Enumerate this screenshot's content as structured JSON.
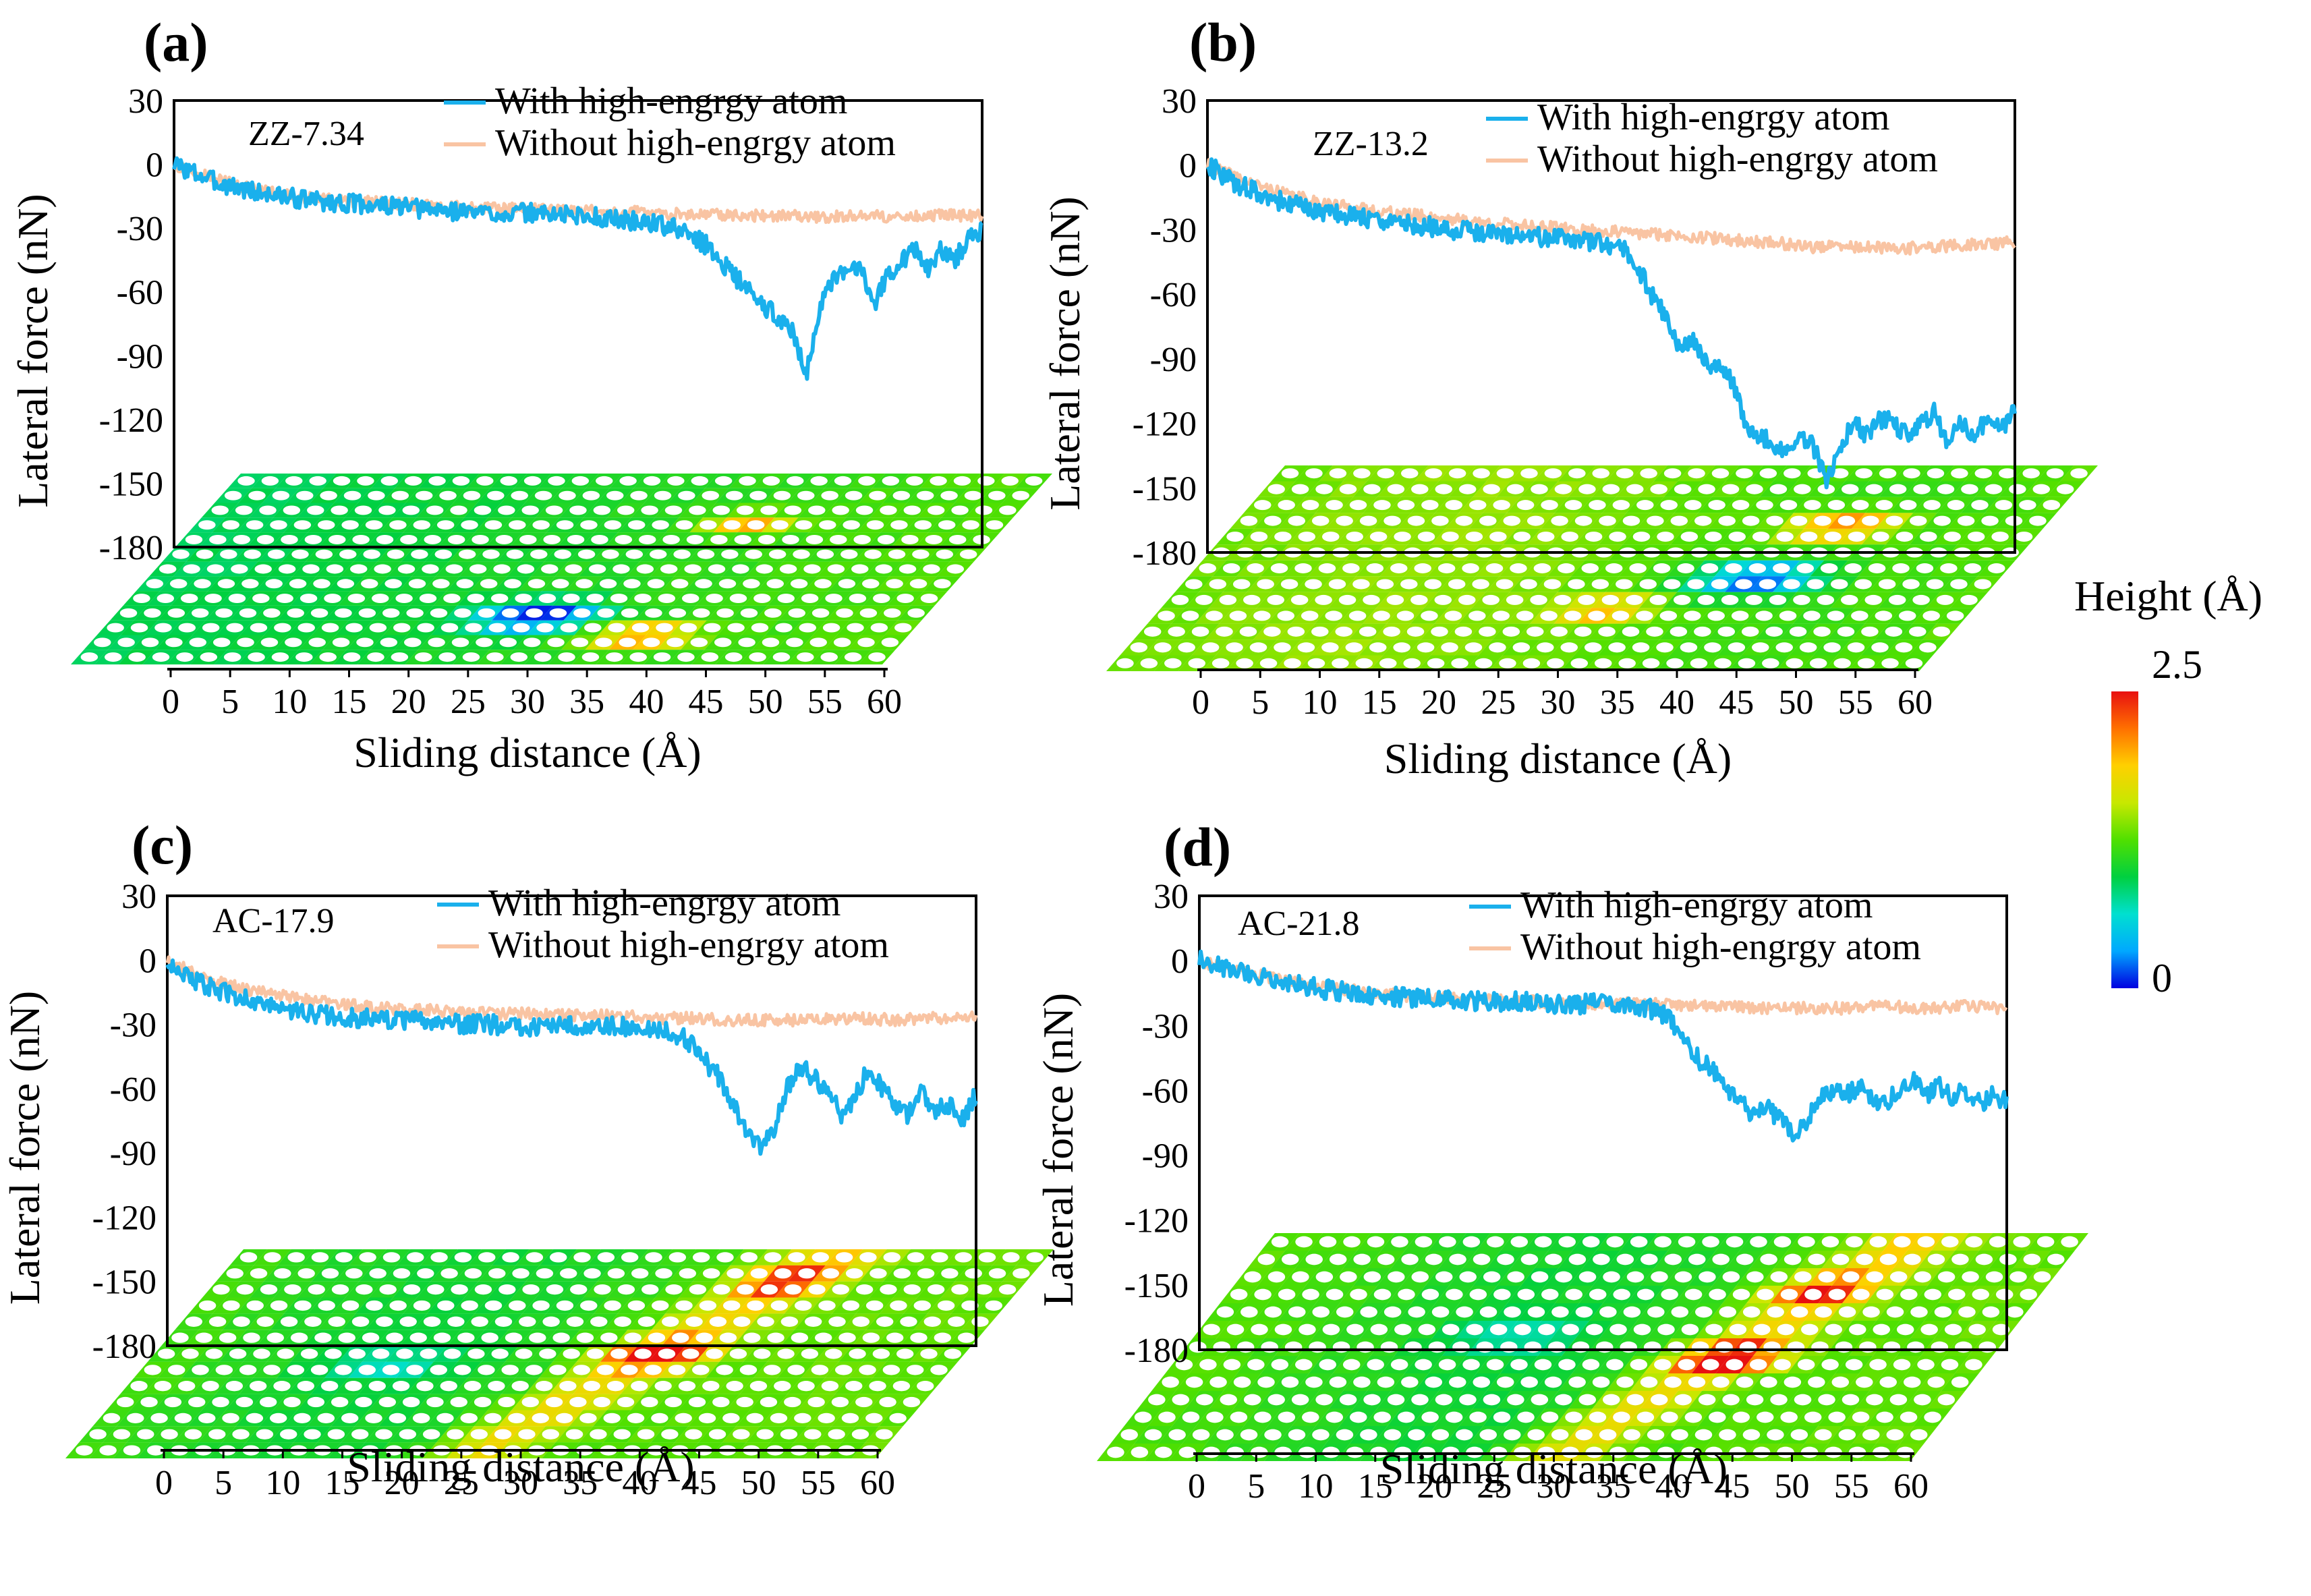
{
  "colors": {
    "with_atom": "#1ab0ec",
    "without_atom": "#f9c4a3",
    "frame": "#000000",
    "lattice_hole": "#ffffff"
  },
  "colorbar": {
    "title": "Height (Å)",
    "max_label": "2.5",
    "min_label": "0",
    "range": [
      0,
      2.5
    ],
    "colors": [
      "#0000e0",
      "#00a8ff",
      "#00e0d0",
      "#00d040",
      "#50e000",
      "#c8e800",
      "#ffd000",
      "#ff7000",
      "#e81010"
    ]
  },
  "chart_data": [
    {
      "type": "line",
      "panel_label": "(a)",
      "case_label": "ZZ-7.34",
      "xlabel": "Sliding distance (Å)",
      "ylabel": "Lateral force (nN)",
      "xlim": [
        0,
        60
      ],
      "ylim": [
        -180,
        30
      ],
      "xticks": [
        "0",
        "5",
        "10",
        "15",
        "20",
        "25",
        "30",
        "35",
        "40",
        "45",
        "50",
        "55",
        "60"
      ],
      "yticks": [
        "30",
        "0",
        "-30",
        "-60",
        "-90",
        "-120",
        "-150",
        "-180"
      ],
      "series": [
        {
          "name": "With high-engrgy atom",
          "x": [
            0,
            3,
            6,
            9,
            12,
            15,
            18,
            21,
            24,
            27,
            30,
            33,
            36,
            38,
            39.5,
            41,
            42,
            43,
            44,
            45,
            46,
            47,
            48,
            49,
            50,
            51,
            52,
            53,
            54,
            55,
            56,
            57,
            58,
            59,
            60
          ],
          "y": [
            0,
            -8,
            -13,
            -16,
            -18,
            -19,
            -21,
            -22,
            -23,
            -23,
            -24,
            -26,
            -28,
            -32,
            -38,
            -48,
            -55,
            -62,
            -68,
            -72,
            -80,
            -98,
            -66,
            -55,
            -50,
            -48,
            -65,
            -52,
            -45,
            -40,
            -50,
            -40,
            -45,
            -35,
            -30
          ]
        },
        {
          "name": "Without high-engrgy atom",
          "x": [
            0,
            3,
            6,
            9,
            12,
            15,
            18,
            21,
            24,
            27,
            30,
            33,
            36,
            39,
            42,
            45,
            48,
            51,
            54,
            57,
            60
          ],
          "y": [
            0,
            -7,
            -12,
            -15,
            -17,
            -18,
            -19,
            -20,
            -21,
            -21,
            -22,
            -22,
            -23,
            -23,
            -24,
            -24,
            -25,
            -24,
            -25,
            -24,
            -24
          ]
        }
      ]
    },
    {
      "type": "line",
      "panel_label": "(b)",
      "case_label": "ZZ-13.2",
      "xlabel": "Sliding distance (Å)",
      "ylabel": "Lateral force (nN)",
      "xlim": [
        0,
        60
      ],
      "ylim": [
        -180,
        30
      ],
      "xticks": [
        "0",
        "5",
        "10",
        "15",
        "20",
        "25",
        "30",
        "35",
        "40",
        "45",
        "50",
        "55",
        "60"
      ],
      "yticks": [
        "30",
        "0",
        "-30",
        "-60",
        "-90",
        "-120",
        "-150",
        "-180"
      ],
      "series": [
        {
          "name": "With high-engrgy atom",
          "x": [
            0,
            2,
            4,
            6,
            8,
            10,
            12,
            14,
            16,
            18,
            20,
            22,
            24,
            26,
            28,
            30,
            31,
            32,
            33,
            34,
            35,
            36,
            37,
            38,
            39,
            40,
            41,
            42,
            43,
            44,
            45,
            46,
            47,
            48,
            49,
            50,
            51,
            52,
            53,
            54,
            55,
            56,
            57,
            58,
            59,
            60
          ],
          "y": [
            0,
            -8,
            -14,
            -18,
            -21,
            -23,
            -25,
            -27,
            -28,
            -30,
            -31,
            -32,
            -33,
            -34,
            -35,
            -37,
            -40,
            -48,
            -60,
            -70,
            -85,
            -80,
            -92,
            -95,
            -100,
            -120,
            -125,
            -130,
            -135,
            -125,
            -130,
            -148,
            -130,
            -120,
            -125,
            -118,
            -120,
            -125,
            -120,
            -115,
            -130,
            -120,
            -125,
            -118,
            -122,
            -115
          ]
        },
        {
          "name": "Without high-engrgy atom",
          "x": [
            0,
            3,
            6,
            9,
            12,
            15,
            18,
            21,
            24,
            27,
            30,
            33,
            36,
            39,
            42,
            45,
            48,
            51,
            54,
            57,
            60
          ],
          "y": [
            0,
            -8,
            -14,
            -18,
            -21,
            -23,
            -25,
            -27,
            -28,
            -30,
            -31,
            -32,
            -33,
            -35,
            -36,
            -38,
            -38,
            -39,
            -38,
            -37,
            -36
          ]
        }
      ]
    },
    {
      "type": "line",
      "panel_label": "(c)",
      "case_label": "AC-17.9",
      "xlabel": "Sliding distance (Å)",
      "ylabel": "Lateral force (nN)",
      "xlim": [
        0,
        60
      ],
      "ylim": [
        -180,
        30
      ],
      "xticks": [
        "0",
        "5",
        "10",
        "15",
        "20",
        "25",
        "30",
        "35",
        "40",
        "45",
        "50",
        "55",
        "60"
      ],
      "yticks": [
        "30",
        "0",
        "-30",
        "-60",
        "-90",
        "-120",
        "-150",
        "-180"
      ],
      "series": [
        {
          "name": "With high-engrgy atom",
          "x": [
            0,
            2,
            4,
            6,
            8,
            10,
            12,
            14,
            16,
            18,
            20,
            22,
            24,
            26,
            28,
            30,
            32,
            34,
            36,
            38,
            39,
            40,
            41,
            42,
            43,
            44,
            45,
            46,
            47,
            48,
            49,
            50,
            51,
            52,
            53,
            54,
            55,
            56,
            57,
            58,
            59,
            60
          ],
          "y": [
            0,
            -10,
            -15,
            -18,
            -22,
            -25,
            -26,
            -27,
            -28,
            -28,
            -29,
            -30,
            -30,
            -31,
            -31,
            -31,
            -30,
            -31,
            -32,
            -35,
            -40,
            -48,
            -55,
            -68,
            -80,
            -86,
            -78,
            -60,
            -50,
            -55,
            -62,
            -72,
            -65,
            -50,
            -60,
            -68,
            -72,
            -62,
            -70,
            -68,
            -75,
            -62
          ]
        },
        {
          "name": "Without high-engrgy atom",
          "x": [
            0,
            3,
            6,
            9,
            12,
            15,
            18,
            21,
            24,
            27,
            30,
            33,
            36,
            39,
            42,
            45,
            48,
            51,
            54,
            57,
            60
          ],
          "y": [
            0,
            -9,
            -14,
            -17,
            -20,
            -22,
            -23,
            -24,
            -25,
            -25,
            -26,
            -26,
            -27,
            -27,
            -28,
            -28,
            -28,
            -27,
            -28,
            -27,
            -27
          ]
        }
      ]
    },
    {
      "type": "line",
      "panel_label": "(d)",
      "case_label": "AC-21.8",
      "xlabel": "Sliding distance (Å)",
      "ylabel": "Lateral force (nN)",
      "xlim": [
        0,
        60
      ],
      "ylim": [
        -180,
        30
      ],
      "xticks": [
        "0",
        "5",
        "10",
        "15",
        "20",
        "25",
        "30",
        "35",
        "40",
        "45",
        "50",
        "55",
        "60"
      ],
      "yticks": [
        "30",
        "0",
        "-30",
        "-60",
        "-90",
        "-120",
        "-150",
        "-180"
      ],
      "series": [
        {
          "name": "With high-engrgy atom",
          "x": [
            0,
            3,
            6,
            9,
            12,
            15,
            18,
            21,
            24,
            27,
            30,
            32,
            34,
            35,
            36,
            37,
            38,
            39,
            40,
            41,
            42,
            43,
            44,
            45,
            46,
            47,
            48,
            49,
            50,
            51,
            52,
            53,
            54,
            55,
            56,
            57,
            58,
            59,
            60
          ],
          "y": [
            0,
            -5,
            -9,
            -13,
            -15,
            -17,
            -18,
            -19,
            -19,
            -20,
            -20,
            -21,
            -23,
            -28,
            -38,
            -45,
            -50,
            -58,
            -65,
            -70,
            -68,
            -72,
            -80,
            -75,
            -65,
            -60,
            -62,
            -58,
            -64,
            -66,
            -60,
            -55,
            -62,
            -58,
            -63,
            -60,
            -66,
            -62,
            -65
          ]
        },
        {
          "name": "Without high-engrgy atom",
          "x": [
            0,
            3,
            6,
            9,
            12,
            15,
            18,
            21,
            24,
            27,
            30,
            33,
            36,
            39,
            42,
            45,
            48,
            51,
            54,
            57,
            60
          ],
          "y": [
            0,
            -5,
            -9,
            -12,
            -14,
            -16,
            -17,
            -18,
            -19,
            -19,
            -20,
            -20,
            -21,
            -21,
            -22,
            -22,
            -22,
            -21,
            -22,
            -21,
            -22
          ]
        }
      ]
    }
  ]
}
